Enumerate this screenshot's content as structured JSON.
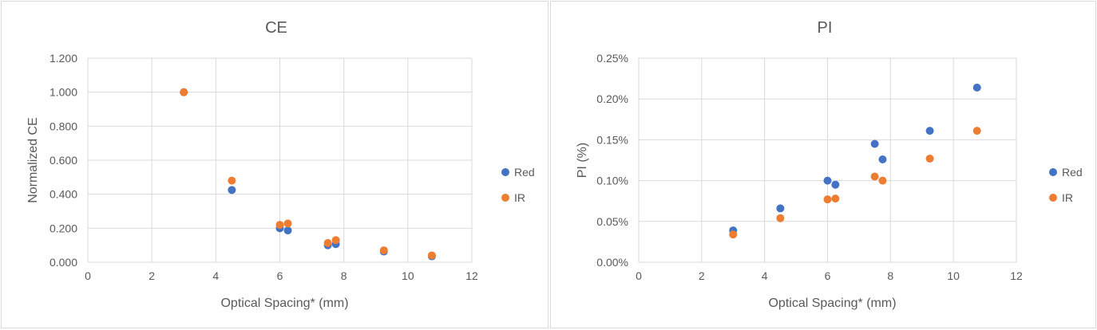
{
  "colors": {
    "Red": "#4472c4",
    "IR": "#ed7d31",
    "grid": "#d9d9d9",
    "text": "#595959"
  },
  "chart_data": [
    {
      "type": "scatter",
      "title": "CE",
      "xlabel": "Optical Spacing* (mm)",
      "ylabel": "Normalized CE",
      "xlim": [
        0,
        12
      ],
      "ylim": [
        0,
        1.2
      ],
      "xticks": [
        "0",
        "2",
        "4",
        "6",
        "8",
        "10",
        "12"
      ],
      "yticks": [
        "0.000",
        "0.200",
        "0.400",
        "0.600",
        "0.800",
        "1.000",
        "1.200"
      ],
      "grid": true,
      "legend_position": "right",
      "series": [
        {
          "name": "Red",
          "x": [
            3,
            4.5,
            6,
            6.25,
            7.5,
            7.75,
            9.25,
            10.75
          ],
          "y": [
            1.0,
            0.425,
            0.2,
            0.187,
            0.1,
            0.107,
            0.063,
            0.035
          ]
        },
        {
          "name": "IR",
          "x": [
            3,
            4.5,
            6,
            6.25,
            7.5,
            7.75,
            9.25,
            10.75
          ],
          "y": [
            1.0,
            0.48,
            0.22,
            0.228,
            0.113,
            0.13,
            0.07,
            0.04
          ]
        }
      ]
    },
    {
      "type": "scatter",
      "title": "PI",
      "xlabel": "Optical Spacing* (mm)",
      "ylabel": "PI (%)",
      "xlim": [
        0,
        12
      ],
      "ylim": [
        0,
        0.25
      ],
      "xticks": [
        "0",
        "2",
        "4",
        "6",
        "8",
        "10",
        "12"
      ],
      "yticks": [
        "0.00%",
        "0.05%",
        "0.10%",
        "0.15%",
        "0.20%",
        "0.25%"
      ],
      "grid": true,
      "legend_position": "right",
      "series": [
        {
          "name": "Red",
          "x": [
            3,
            4.5,
            6,
            6.25,
            7.5,
            7.75,
            9.25,
            10.75
          ],
          "y": [
            0.039,
            0.066,
            0.1,
            0.095,
            0.145,
            0.126,
            0.161,
            0.214
          ]
        },
        {
          "name": "IR",
          "x": [
            3,
            4.5,
            6,
            6.25,
            7.5,
            7.75,
            9.25,
            10.75
          ],
          "y": [
            0.034,
            0.054,
            0.077,
            0.078,
            0.105,
            0.1,
            0.127,
            0.161
          ]
        }
      ]
    }
  ]
}
